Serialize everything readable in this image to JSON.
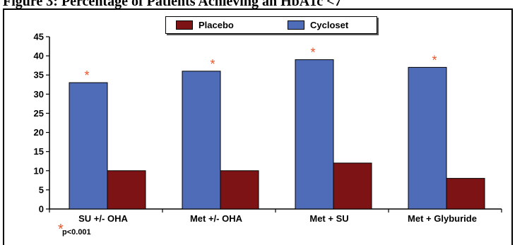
{
  "page": {
    "title": "Figure 3: Percentage of Patients Achieving an HbA1c <7"
  },
  "chart_data": {
    "type": "bar",
    "categories": [
      "SU +/- OHA",
      "Met +/- OHA",
      "Met + SU",
      "Met + Glyburide"
    ],
    "series": [
      {
        "name": "Cycloset",
        "color": "#4f6cb8",
        "values": [
          33,
          36,
          39,
          37
        ]
      },
      {
        "name": "Placebo",
        "color": "#7d1315",
        "values": [
          10,
          10,
          12,
          8
        ]
      }
    ],
    "ylim": [
      0,
      45
    ],
    "yticks": [
      0,
      5,
      10,
      15,
      20,
      25,
      30,
      35,
      40,
      45
    ],
    "significance_marker": "*",
    "significance_color": "#e8552a",
    "significant_categories": [
      0,
      1,
      2,
      3
    ],
    "legend": {
      "placement": "top",
      "entries": [
        "Placebo",
        "Cycloset"
      ]
    },
    "grid": false,
    "footnote": "p<0.001"
  }
}
